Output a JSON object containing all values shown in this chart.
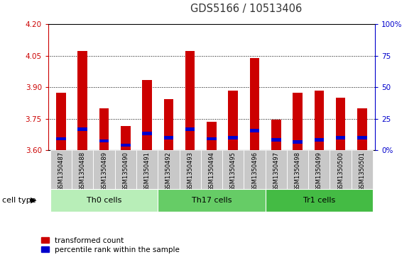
{
  "title": "GDS5166 / 10513406",
  "samples": [
    "GSM1350487",
    "GSM1350488",
    "GSM1350489",
    "GSM1350490",
    "GSM1350491",
    "GSM1350492",
    "GSM1350493",
    "GSM1350494",
    "GSM1350495",
    "GSM1350496",
    "GSM1350497",
    "GSM1350498",
    "GSM1350499",
    "GSM1350500",
    "GSM1350501"
  ],
  "red_values": [
    3.875,
    4.075,
    3.8,
    3.715,
    3.935,
    3.845,
    4.075,
    3.735,
    3.885,
    4.04,
    3.745,
    3.875,
    3.885,
    3.85,
    3.8
  ],
  "blue_values": [
    3.655,
    3.7,
    3.645,
    3.625,
    3.68,
    3.66,
    3.7,
    3.655,
    3.66,
    3.695,
    3.65,
    3.64,
    3.65,
    3.66,
    3.66
  ],
  "ylim": [
    3.6,
    4.2
  ],
  "yticks": [
    3.6,
    3.75,
    3.9,
    4.05,
    4.2
  ],
  "right_yticks": [
    0,
    25,
    50,
    75,
    100
  ],
  "right_tick_labels": [
    "0%",
    "25",
    "50",
    "75",
    "100%"
  ],
  "y_axis_color": "#cc0000",
  "right_y_color": "#0000cc",
  "bar_color": "#cc0000",
  "blue_color": "#0000cc",
  "bar_width": 0.45,
  "cell_groups": [
    {
      "label": "Th0 cells",
      "start": 0,
      "end": 5,
      "color": "#b8eeb8"
    },
    {
      "label": "Th17 cells",
      "start": 5,
      "end": 10,
      "color": "#66cc66"
    },
    {
      "label": "Tr1 cells",
      "start": 10,
      "end": 15,
      "color": "#44bb44"
    }
  ],
  "legend_red": "transformed count",
  "legend_blue": "percentile rank within the sample",
  "tick_fontsize": 7.5,
  "title_fontsize": 10.5,
  "sample_fontsize": 6.0,
  "cell_fontsize": 8.0,
  "legend_fontsize": 7.5,
  "gray_bg": "#c8c8c8",
  "white_bg": "#ffffff",
  "cell_type_label": "cell type"
}
